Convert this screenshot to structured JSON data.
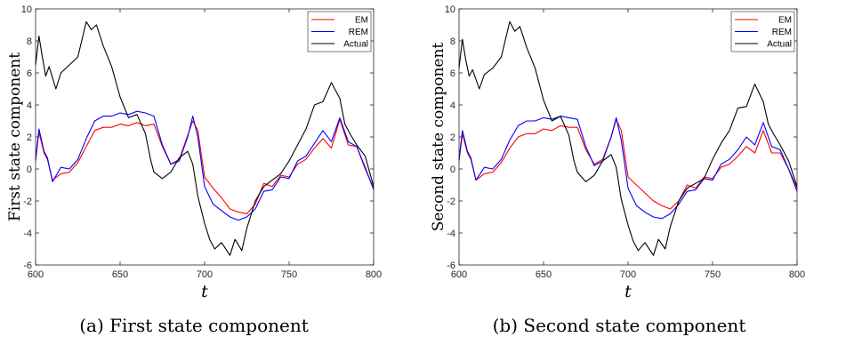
{
  "chart_data": [
    {
      "type": "line",
      "ylabel": "First state component",
      "xlabel": "t",
      "caption": "(a) First state component",
      "xlim": [
        600,
        800
      ],
      "ylim": [
        -6,
        10
      ],
      "xticks": [
        600,
        650,
        700,
        750,
        800
      ],
      "yticks": [
        -6,
        -4,
        -2,
        0,
        2,
        4,
        6,
        8,
        10
      ],
      "grid": false,
      "legend_position": "top-right",
      "series": [
        {
          "name": "EM",
          "color": "#ff0000",
          "x": [
            600,
            602,
            605,
            607,
            610,
            615,
            620,
            625,
            630,
            635,
            640,
            645,
            650,
            655,
            660,
            665,
            670,
            675,
            680,
            685,
            690,
            693,
            696,
            700,
            705,
            710,
            715,
            720,
            725,
            730,
            735,
            740,
            745,
            750,
            755,
            760,
            765,
            770,
            775,
            780,
            785,
            790,
            795,
            800
          ],
          "y": [
            0.5,
            2.3,
            1.0,
            0.6,
            -0.7,
            -0.3,
            -0.2,
            0.4,
            1.4,
            2.4,
            2.6,
            2.6,
            2.8,
            2.7,
            2.9,
            2.7,
            2.8,
            1.4,
            0.3,
            0.6,
            2.1,
            3.0,
            2.4,
            -0.5,
            -1.2,
            -1.8,
            -2.5,
            -2.7,
            -2.8,
            -2.2,
            -0.9,
            -1.1,
            -0.4,
            -0.5,
            0.3,
            0.6,
            1.3,
            1.9,
            1.3,
            3.1,
            1.5,
            1.4,
            0.0,
            -1.2
          ]
        },
        {
          "name": "REM",
          "color": "#0000ff",
          "x": [
            600,
            602,
            605,
            607,
            610,
            615,
            620,
            625,
            630,
            635,
            640,
            645,
            650,
            655,
            660,
            665,
            670,
            675,
            680,
            685,
            690,
            693,
            696,
            700,
            705,
            710,
            715,
            720,
            725,
            730,
            735,
            740,
            745,
            750,
            755,
            760,
            765,
            770,
            775,
            780,
            785,
            790,
            795,
            800
          ],
          "y": [
            0.6,
            2.5,
            1.1,
            0.7,
            -0.8,
            0.1,
            0.0,
            0.6,
            1.9,
            3.0,
            3.3,
            3.3,
            3.5,
            3.4,
            3.6,
            3.5,
            3.3,
            1.5,
            0.3,
            0.5,
            2.0,
            3.3,
            2.0,
            -1.1,
            -2.2,
            -2.6,
            -3.0,
            -3.2,
            -3.0,
            -2.5,
            -1.4,
            -1.3,
            -0.5,
            -0.6,
            0.5,
            0.8,
            1.6,
            2.4,
            1.7,
            3.2,
            1.7,
            1.4,
            0.1,
            -1.3
          ]
        },
        {
          "name": "Actual",
          "color": "#000000",
          "x": [
            600,
            602,
            604,
            606,
            608,
            612,
            615,
            620,
            625,
            630,
            633,
            636,
            640,
            645,
            650,
            655,
            660,
            665,
            668,
            670,
            675,
            680,
            685,
            690,
            693,
            696,
            700,
            703,
            706,
            710,
            715,
            718,
            722,
            725,
            730,
            735,
            740,
            745,
            750,
            755,
            760,
            765,
            770,
            775,
            780,
            783,
            786,
            790,
            795,
            800
          ],
          "y": [
            6.5,
            8.3,
            7.0,
            5.8,
            6.4,
            5.0,
            6.0,
            6.5,
            7.0,
            9.2,
            8.7,
            9.0,
            7.7,
            6.4,
            4.5,
            3.2,
            3.4,
            2.2,
            0.6,
            -0.2,
            -0.6,
            -0.2,
            0.7,
            1.1,
            0.3,
            -1.7,
            -3.4,
            -4.4,
            -5.0,
            -4.6,
            -5.4,
            -4.4,
            -5.1,
            -3.7,
            -2.0,
            -1.1,
            -0.7,
            -0.3,
            0.5,
            1.5,
            2.5,
            4.0,
            4.2,
            5.4,
            4.4,
            2.8,
            2.2,
            1.5,
            0.8,
            -1.1
          ]
        }
      ]
    },
    {
      "type": "line",
      "ylabel": "Second state component",
      "xlabel": "t",
      "caption": "(b) Second state component",
      "xlim": [
        600,
        800
      ],
      "ylim": [
        -6,
        10
      ],
      "xticks": [
        600,
        650,
        700,
        750,
        800
      ],
      "yticks": [
        -6,
        -4,
        -2,
        0,
        2,
        4,
        6,
        8,
        10
      ],
      "grid": false,
      "legend_position": "top-right",
      "series": [
        {
          "name": "EM",
          "color": "#ff0000",
          "x": [
            600,
            602,
            605,
            607,
            610,
            615,
            620,
            625,
            630,
            635,
            640,
            645,
            650,
            655,
            660,
            665,
            670,
            675,
            680,
            685,
            690,
            693,
            696,
            700,
            705,
            710,
            715,
            720,
            725,
            730,
            735,
            740,
            745,
            750,
            755,
            760,
            765,
            770,
            775,
            780,
            785,
            790,
            795,
            800
          ],
          "y": [
            0.5,
            2.2,
            1.0,
            0.6,
            -0.7,
            -0.3,
            -0.2,
            0.4,
            1.3,
            2.0,
            2.2,
            2.2,
            2.5,
            2.4,
            2.7,
            2.6,
            2.6,
            1.2,
            0.3,
            0.6,
            2.0,
            3.1,
            2.4,
            -0.5,
            -1.0,
            -1.5,
            -2.0,
            -2.3,
            -2.5,
            -2.0,
            -1.0,
            -1.2,
            -0.5,
            -0.6,
            0.1,
            0.3,
            0.8,
            1.4,
            1.0,
            2.4,
            1.0,
            1.0,
            0.0,
            -1.2
          ]
        },
        {
          "name": "REM",
          "color": "#0000ff",
          "x": [
            600,
            602,
            605,
            607,
            610,
            615,
            620,
            625,
            630,
            635,
            640,
            645,
            650,
            655,
            660,
            665,
            670,
            675,
            680,
            685,
            690,
            693,
            696,
            700,
            705,
            710,
            715,
            720,
            725,
            730,
            735,
            740,
            745,
            750,
            755,
            760,
            765,
            770,
            775,
            780,
            785,
            790,
            795,
            800
          ],
          "y": [
            0.6,
            2.4,
            1.1,
            0.7,
            -0.7,
            0.1,
            0.0,
            0.6,
            1.8,
            2.7,
            3.0,
            3.0,
            3.2,
            3.1,
            3.3,
            3.2,
            3.1,
            1.4,
            0.2,
            0.5,
            2.0,
            3.2,
            1.8,
            -1.2,
            -2.3,
            -2.7,
            -3.0,
            -3.1,
            -2.8,
            -2.2,
            -1.4,
            -1.3,
            -0.6,
            -0.7,
            0.3,
            0.6,
            1.2,
            2.0,
            1.5,
            2.9,
            1.4,
            1.2,
            0.0,
            -1.4
          ]
        },
        {
          "name": "Actual",
          "color": "#000000",
          "x": [
            600,
            602,
            604,
            606,
            608,
            612,
            615,
            620,
            625,
            630,
            633,
            636,
            640,
            645,
            650,
            655,
            660,
            665,
            668,
            670,
            675,
            680,
            685,
            690,
            693,
            696,
            700,
            703,
            706,
            710,
            715,
            718,
            722,
            725,
            730,
            735,
            740,
            745,
            750,
            755,
            760,
            765,
            770,
            775,
            780,
            783,
            786,
            790,
            795,
            800
          ],
          "y": [
            6.3,
            8.1,
            6.8,
            5.8,
            6.2,
            5.0,
            5.9,
            6.3,
            7.0,
            9.2,
            8.6,
            8.9,
            7.6,
            6.3,
            4.3,
            3.0,
            3.3,
            2.1,
            0.5,
            -0.2,
            -0.8,
            -0.4,
            0.5,
            0.9,
            0.1,
            -1.9,
            -3.5,
            -4.5,
            -5.1,
            -4.6,
            -5.4,
            -4.4,
            -5.0,
            -3.6,
            -2.0,
            -1.2,
            -0.9,
            -0.6,
            0.6,
            1.6,
            2.4,
            3.8,
            3.9,
            5.3,
            4.2,
            2.8,
            2.2,
            1.5,
            0.5,
            -1.1
          ]
        }
      ]
    }
  ]
}
